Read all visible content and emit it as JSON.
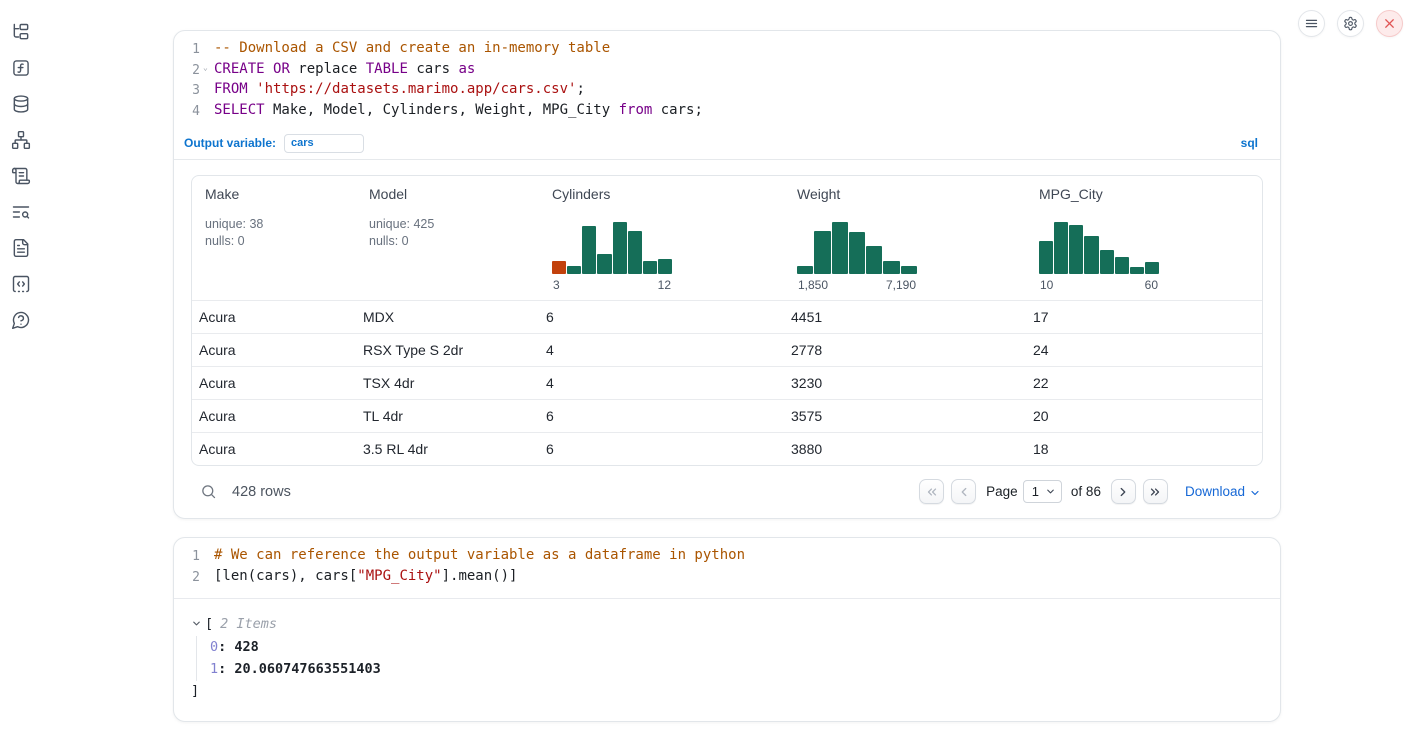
{
  "topbar": {
    "buttons": [
      "notebook-menu",
      "settings",
      "shutdown"
    ]
  },
  "sidebar": {
    "items": [
      "file-explorer",
      "variables",
      "data-sources",
      "dependency-graph",
      "scratchpad",
      "logs",
      "documentation",
      "snippets",
      "help"
    ]
  },
  "icons": {
    "pagination_first": "chevrons-left",
    "pagination_prev": "chevron-left",
    "pagination_next": "chevron-right",
    "pagination_last": "chevrons-right",
    "select_caret": "chevron-down",
    "download_caret": "chevron-down",
    "tree_caret": "chevron-down",
    "fold_marker": "⌄",
    "search": "magnifier"
  },
  "colors": {
    "hist_green": "#156e58",
    "hist_orange": "#c2410c",
    "accent_blue": "#0d74ce",
    "link_blue": "#1668d6"
  },
  "sql_cell": {
    "line_numbers": [
      "1",
      "2",
      "3",
      "4"
    ],
    "fold_line_index": 1,
    "fold_icon": "⌄",
    "code": [
      [
        {
          "t": "comment",
          "v": "-- Download a CSV and create an in-memory table"
        }
      ],
      [
        {
          "t": "kw",
          "v": "CREATE"
        },
        {
          "t": "plain",
          "v": " "
        },
        {
          "t": "kw",
          "v": "OR"
        },
        {
          "t": "plain",
          "v": " replace "
        },
        {
          "t": "kw",
          "v": "TABLE"
        },
        {
          "t": "plain",
          "v": " cars "
        },
        {
          "t": "kw",
          "v": "as"
        }
      ],
      [
        {
          "t": "kw",
          "v": "FROM"
        },
        {
          "t": "plain",
          "v": " "
        },
        {
          "t": "str",
          "v": "'https://datasets.marimo.app/cars.csv'"
        },
        {
          "t": "plain",
          "v": ";"
        }
      ],
      [
        {
          "t": "kw",
          "v": "SELECT"
        },
        {
          "t": "plain",
          "v": " Make, Model, Cylinders, Weight, MPG_City "
        },
        {
          "t": "kw",
          "v": "from"
        },
        {
          "t": "plain",
          "v": " cars;"
        }
      ]
    ],
    "output_variable_label": "Output variable:",
    "output_variable_value": "cars",
    "language_badge": "sql"
  },
  "table": {
    "columns": [
      {
        "label": "Make",
        "stats": [
          "unique: 38",
          "nulls: 0"
        ]
      },
      {
        "label": "Model",
        "stats": [
          "unique: 425",
          "nulls: 0"
        ]
      },
      {
        "label": "Cylinders",
        "histogram": {
          "min_label": "3",
          "max_label": "12",
          "bars": [
            {
              "h": 25,
              "c": "orange"
            },
            {
              "h": 16
            },
            {
              "h": 94
            },
            {
              "h": 40
            },
            {
              "h": 100
            },
            {
              "h": 83
            },
            {
              "h": 25
            },
            {
              "h": 29
            }
          ]
        }
      },
      {
        "label": "Weight",
        "histogram": {
          "min_label": "1,850",
          "max_label": "7,190",
          "bars": [
            {
              "h": 16
            },
            {
              "h": 83
            },
            {
              "h": 100
            },
            {
              "h": 81
            },
            {
              "h": 55
            },
            {
              "h": 25
            },
            {
              "h": 16
            }
          ]
        }
      },
      {
        "label": "MPG_City",
        "histogram": {
          "min_label": "10",
          "max_label": "60",
          "bars": [
            {
              "h": 65
            },
            {
              "h": 100
            },
            {
              "h": 95
            },
            {
              "h": 74
            },
            {
              "h": 46
            },
            {
              "h": 33
            },
            {
              "h": 15
            },
            {
              "h": 24
            }
          ]
        }
      }
    ],
    "rows": [
      [
        "Acura",
        "MDX",
        "6",
        "4451",
        "17"
      ],
      [
        "Acura",
        "RSX Type S 2dr",
        "4",
        "2778",
        "24"
      ],
      [
        "Acura",
        "TSX 4dr",
        "4",
        "3230",
        "22"
      ],
      [
        "Acura",
        "TL 4dr",
        "6",
        "3575",
        "20"
      ],
      [
        "Acura",
        "3.5 RL 4dr",
        "6",
        "3880",
        "18"
      ]
    ],
    "footer": {
      "row_count": "428 rows",
      "page_label": "Page",
      "page_value": "1",
      "of_label": "of 86",
      "download_label": "Download"
    }
  },
  "python_cell": {
    "line_numbers": [
      "1",
      "2"
    ],
    "code": [
      [
        {
          "t": "comment",
          "v": "# We can reference the output variable as a dataframe in python"
        }
      ],
      [
        {
          "t": "plain",
          "v": "[len(cars), cars["
        },
        {
          "t": "str",
          "v": "\"MPG_City\""
        },
        {
          "t": "plain",
          "v": "].mean()]"
        }
      ]
    ],
    "output": {
      "open_bracket": "[",
      "items_label": "2 Items",
      "items": [
        {
          "key": "0",
          "value": "428"
        },
        {
          "key": "1",
          "value": "20.060747663551403"
        }
      ],
      "close_bracket": "]"
    }
  }
}
